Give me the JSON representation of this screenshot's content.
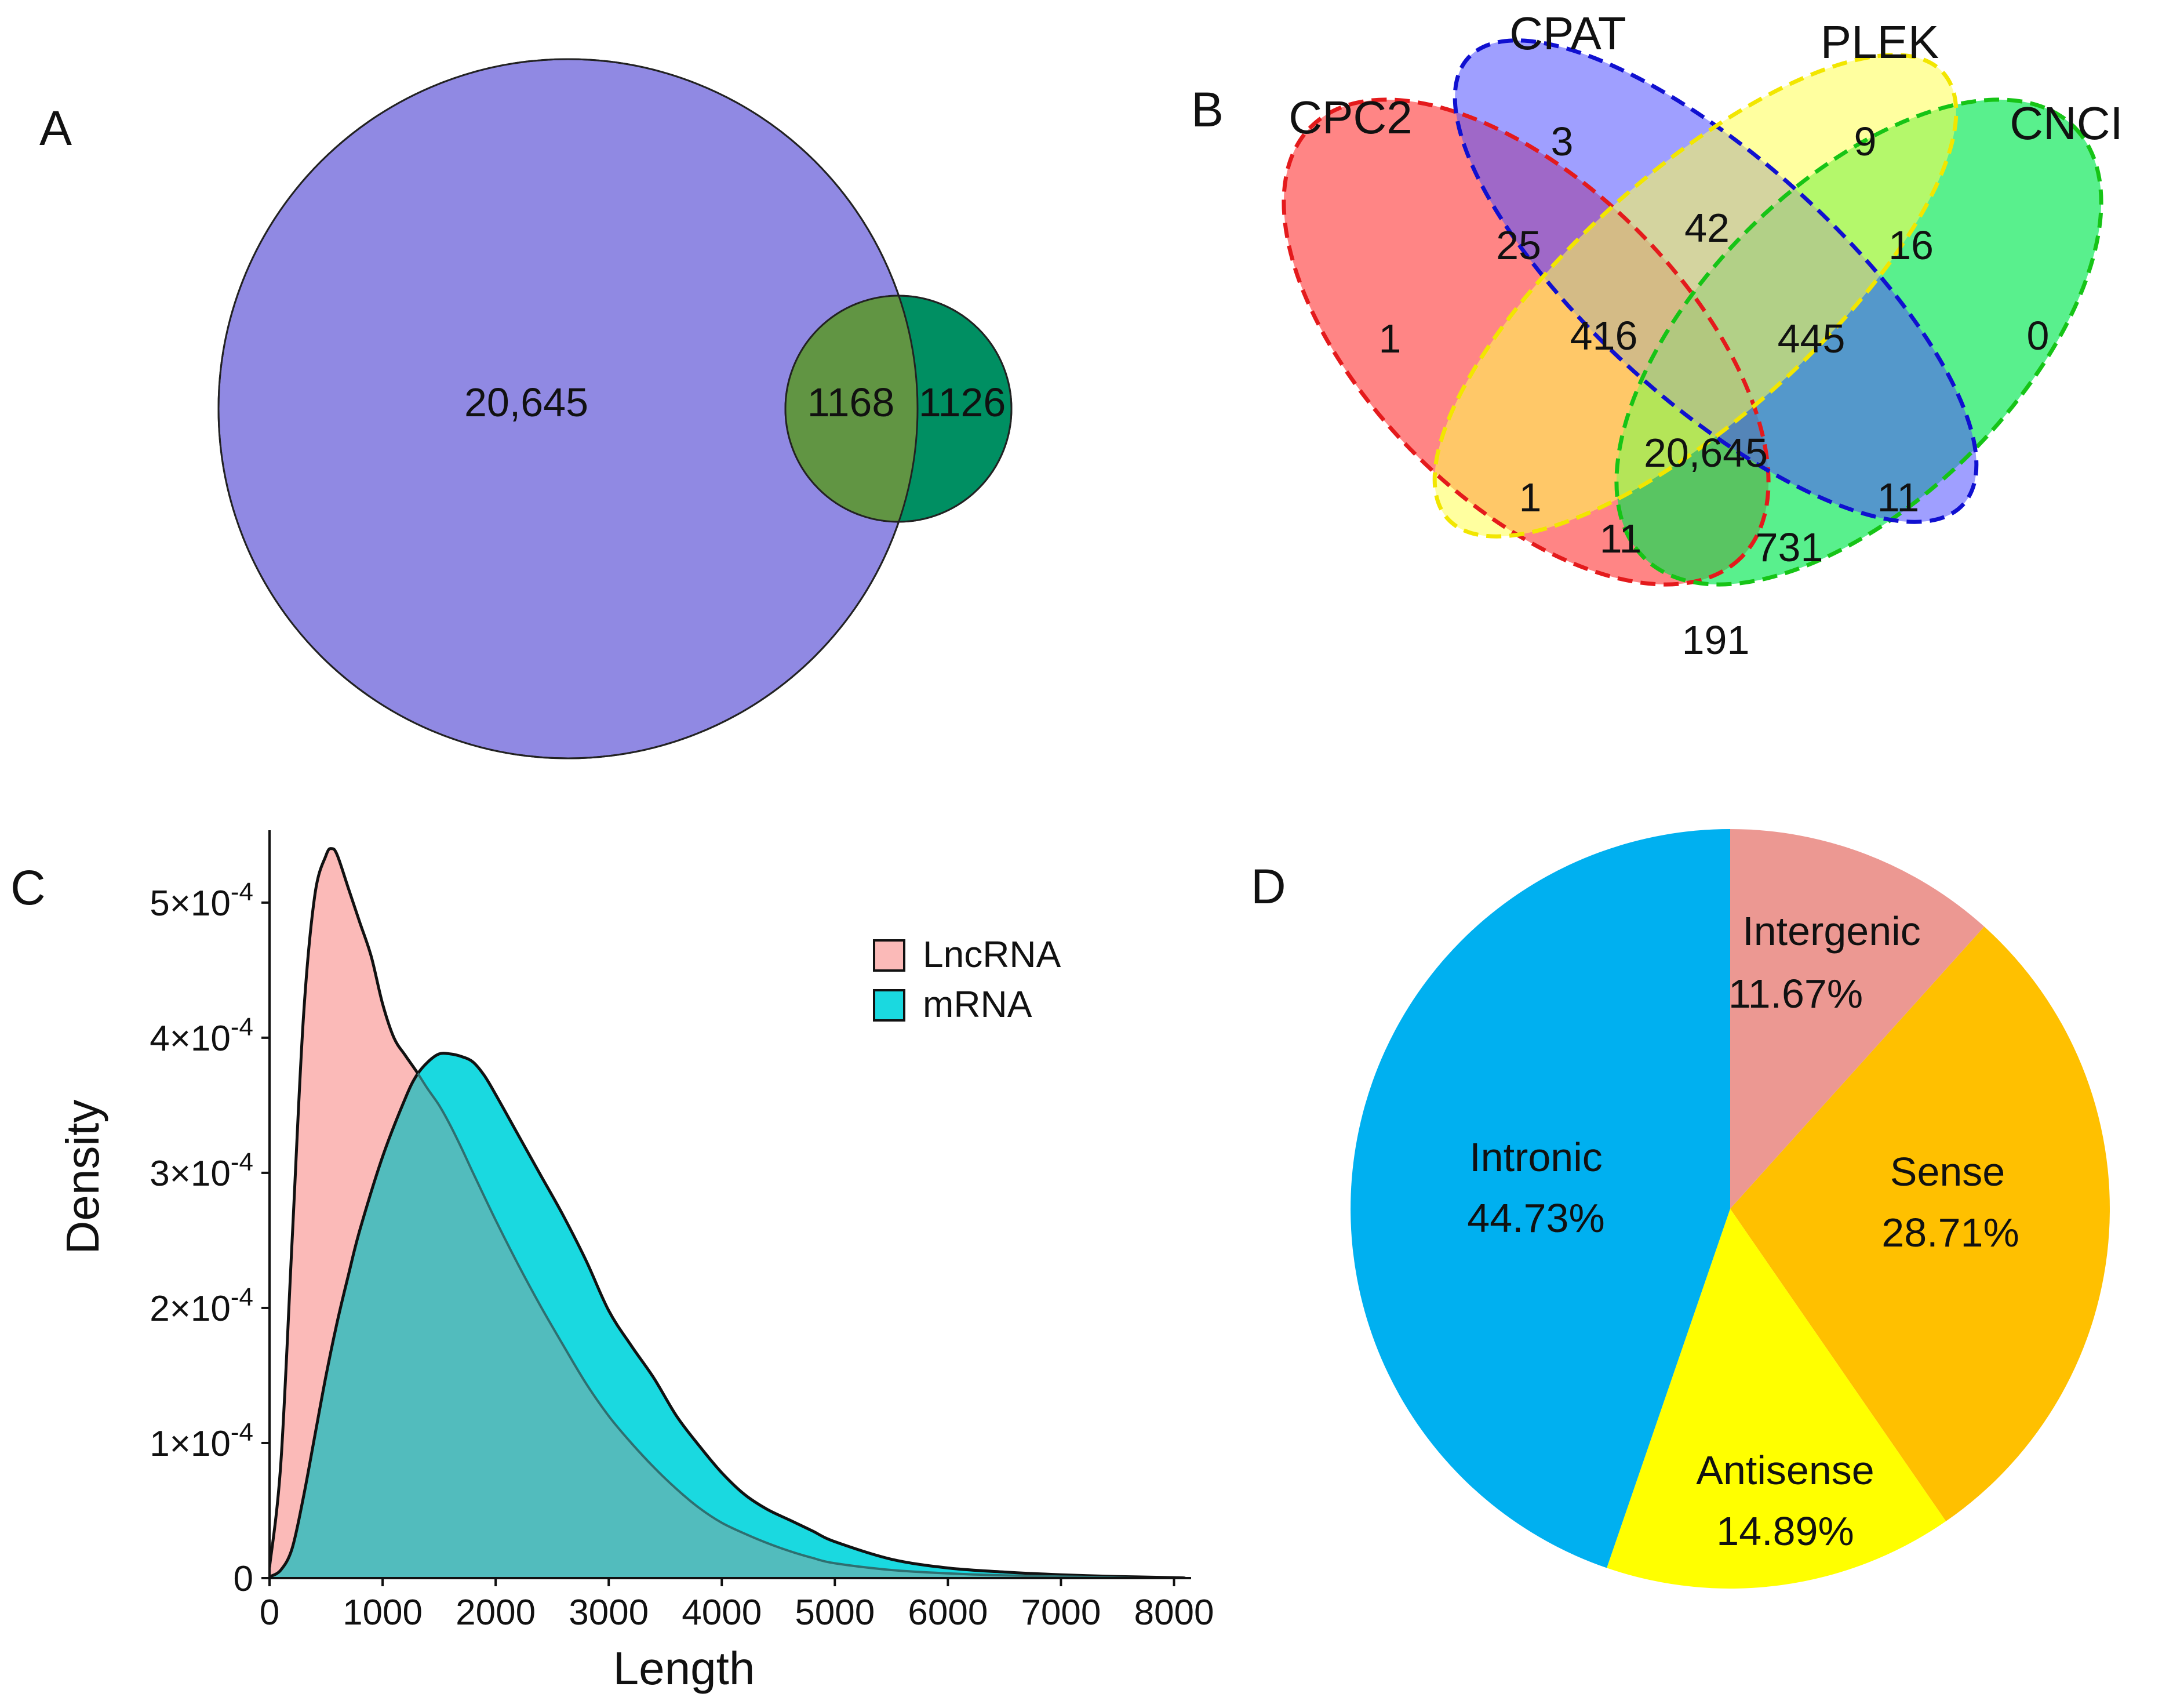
{
  "chart_data": [
    {
      "panel": "A",
      "type": "venn",
      "sets": 2,
      "colors": {
        "left": "#9089e3",
        "overlap": "#619543",
        "right": "#008f62",
        "stroke": "#222222"
      },
      "regions": [
        {
          "id": "left",
          "label": "20,645"
        },
        {
          "id": "overlap",
          "label": "1168"
        },
        {
          "id": "right",
          "label": "1126"
        }
      ]
    },
    {
      "panel": "B",
      "type": "venn",
      "sets": [
        {
          "name": "CPC2",
          "color": "#ff4444",
          "edge": "#e41a1c"
        },
        {
          "name": "CPAT",
          "color": "#5050ff",
          "edge": "#1010d0"
        },
        {
          "name": "PLEK",
          "color": "#ffff50",
          "edge": "#f2e600"
        },
        {
          "name": "CNCI",
          "color": "#00e850",
          "edge": "#16c416"
        }
      ],
      "regions": [
        {
          "sets": [
            "CPC2"
          ],
          "label": "1"
        },
        {
          "sets": [
            "CPAT"
          ],
          "label": "3"
        },
        {
          "sets": [
            "PLEK"
          ],
          "label": "9"
        },
        {
          "sets": [
            "CNCI"
          ],
          "label": "0"
        },
        {
          "sets": [
            "CPC2",
            "CPAT"
          ],
          "label": "25"
        },
        {
          "sets": [
            "CPAT",
            "PLEK"
          ],
          "label": "42"
        },
        {
          "sets": [
            "PLEK",
            "CNCI"
          ],
          "label": "16"
        },
        {
          "sets": [
            "CPC2",
            "CPAT",
            "PLEK"
          ],
          "label": "416"
        },
        {
          "sets": [
            "CPAT",
            "PLEK",
            "CNCI"
          ],
          "label": "445"
        },
        {
          "sets": [
            "CPC2",
            "CPAT",
            "PLEK",
            "CNCI"
          ],
          "label": "20,645"
        },
        {
          "sets": [
            "CPC2",
            "PLEK"
          ],
          "label": "1"
        },
        {
          "sets": [
            "CPAT",
            "CNCI"
          ],
          "label": "11"
        },
        {
          "sets": [
            "CPC2",
            "PLEK",
            "CNCI"
          ],
          "label": "11"
        },
        {
          "sets": [
            "CPC2",
            "CPAT",
            "CNCI"
          ],
          "label": "731"
        },
        {
          "sets": [
            "CPC2",
            "CNCI"
          ],
          "label": "191"
        }
      ]
    },
    {
      "panel": "C",
      "type": "area",
      "xlabel": "Length",
      "ylabel": "Density",
      "xlim": [
        0,
        8100
      ],
      "ylim": [
        0,
        0.000545
      ],
      "x_ticks": [
        {
          "value": 0,
          "label": "0"
        },
        {
          "value": 1000,
          "label": "1000"
        },
        {
          "value": 2000,
          "label": "2000"
        },
        {
          "value": 3000,
          "label": "3000"
        },
        {
          "value": 4000,
          "label": "4000"
        },
        {
          "value": 5000,
          "label": "5000"
        },
        {
          "value": 6000,
          "label": "6000"
        },
        {
          "value": 7000,
          "label": "7000"
        },
        {
          "value": 8000,
          "label": "8000"
        }
      ],
      "y_ticks": [
        {
          "value": 0,
          "label": "0",
          "exp": ""
        },
        {
          "value": 0.0001,
          "label": "1×10",
          "exp": "-4"
        },
        {
          "value": 0.0002,
          "label": "2×10",
          "exp": "-4"
        },
        {
          "value": 0.0003,
          "label": "3×10",
          "exp": "-4"
        },
        {
          "value": 0.0004,
          "label": "4×10",
          "exp": "-4"
        },
        {
          "value": 0.0005,
          "label": "5×10",
          "exp": "-4"
        }
      ],
      "series": [
        {
          "name": "LncRNA",
          "color": "#fbbab8",
          "x": [
            0,
            100,
            200,
            300,
            400,
            500,
            550,
            600,
            700,
            800,
            900,
            1000,
            1100,
            1200,
            1300,
            1400,
            1500,
            1600,
            1700,
            1800,
            2000,
            2200,
            2400,
            2600,
            2800,
            3000,
            3200,
            3400,
            3600,
            3800,
            4000,
            4200,
            4400,
            4600,
            4800,
            5000,
            5500,
            6000,
            6500,
            7000,
            7500,
            8000,
            8100
          ],
          "values": [
            8e-06,
            8.5e-05,
            0.00025,
            0.000415,
            0.000505,
            0.000535,
            0.00054,
            0.000535,
            0.00051,
            0.000485,
            0.00046,
            0.000425,
            0.0004,
            0.000387,
            0.000375,
            0.000362,
            0.00035,
            0.000335,
            0.000318,
            0.0003,
            0.000265,
            0.000232,
            0.000201,
            0.000172,
            0.000144,
            0.00012,
            0.0001,
            8.2e-05,
            6.6e-05,
            5.2e-05,
            4.1e-05,
            3.3e-05,
            2.6e-05,
            2e-05,
            1.5e-05,
            1.1e-05,
            6e-06,
            3.5e-06,
            2e-06,
            1.2e-06,
            6e-07,
            2e-07,
            0
          ]
        },
        {
          "name": "mRNA",
          "color": "#1ad9e0",
          "x": [
            0,
            100,
            200,
            300,
            400,
            500,
            600,
            700,
            800,
            1000,
            1200,
            1300,
            1400,
            1500,
            1600,
            1700,
            1800,
            1900,
            2000,
            2200,
            2400,
            2600,
            2800,
            3000,
            3200,
            3400,
            3600,
            3800,
            4000,
            4200,
            4400,
            4600,
            4800,
            5000,
            5500,
            6000,
            6500,
            7000,
            7500,
            8000,
            8100
          ],
          "values": [
            1e-06,
            6e-06,
            2.2e-05,
            6e-05,
            0.000105,
            0.00015,
            0.00019,
            0.000225,
            0.000258,
            0.000312,
            0.000355,
            0.000372,
            0.000382,
            0.000388,
            0.000388,
            0.000386,
            0.000382,
            0.000372,
            0.000358,
            0.000328,
            0.000298,
            0.000268,
            0.000235,
            0.000198,
            0.000172,
            0.000148,
            0.00012,
            9.8e-05,
            7.8e-05,
            6.2e-05,
            5.1e-05,
            4.3e-05,
            3.5e-05,
            2.7e-05,
            1.4e-05,
            7.5e-06,
            4.5e-06,
            2.5e-06,
            1.2e-06,
            4e-07,
            0
          ]
        }
      ],
      "overlap_color": "#52bcbd",
      "legend": {
        "position": "top-right",
        "entries": [
          "LncRNA",
          "mRNA"
        ]
      }
    },
    {
      "panel": "D",
      "type": "pie",
      "slices": [
        {
          "name": "Intergenic",
          "value": 11.67,
          "label": "11.67%",
          "color": "#ec9892"
        },
        {
          "name": "Sense",
          "value": 28.71,
          "label": "28.71%",
          "color": "#ffc000"
        },
        {
          "name": "Antisense",
          "value": 14.89,
          "label": "14.89%",
          "color": "#ffff00"
        },
        {
          "name": "Intronic",
          "value": 44.73,
          "label": "44.73%",
          "color": "#00b0f0"
        }
      ]
    }
  ]
}
